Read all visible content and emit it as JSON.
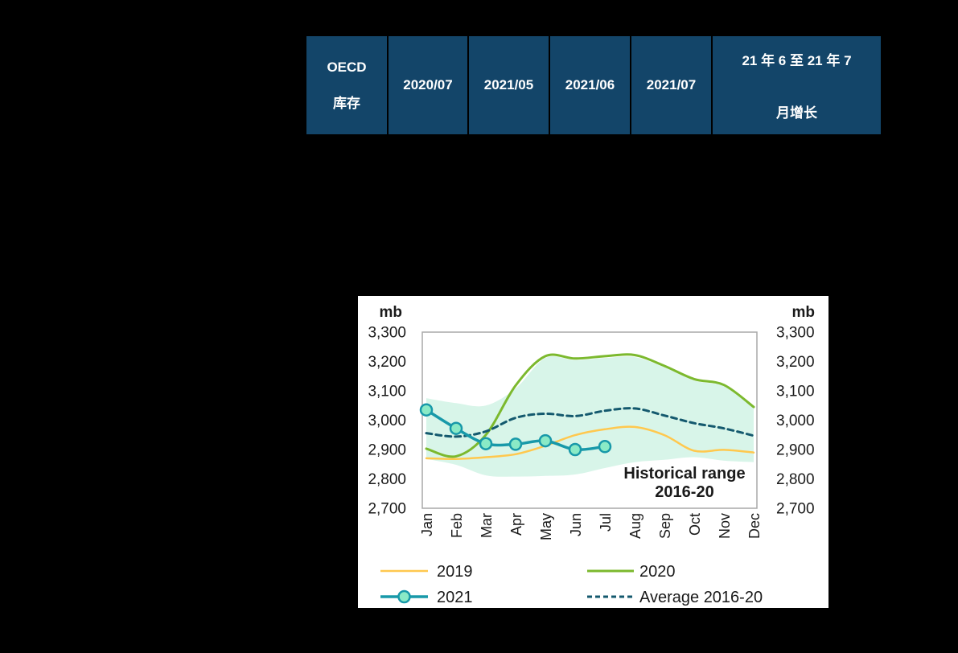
{
  "table": {
    "header_bg": "#134569",
    "header_text_color": "#FFFFFF",
    "columns": [
      {
        "lines": [
          "OECD",
          "库存"
        ]
      },
      {
        "lines": [
          "2020/07"
        ]
      },
      {
        "lines": [
          "2021/05"
        ]
      },
      {
        "lines": [
          "2021/06"
        ]
      },
      {
        "lines": [
          "2021/07"
        ]
      },
      {
        "lines": [
          "21 年 6 至 21 年 7",
          "月增长"
        ]
      }
    ]
  },
  "chart_data": {
    "type": "line",
    "title": "",
    "unit_label_left": "mb",
    "unit_label_right": "mb",
    "categories": [
      "Jan",
      "Feb",
      "Mar",
      "Apr",
      "May",
      "Jun",
      "Jul",
      "Aug",
      "Sep",
      "Oct",
      "Nov",
      "Dec"
    ],
    "ylim": [
      2700,
      3300
    ],
    "yticks": [
      2700,
      2800,
      2900,
      3000,
      3100,
      3200,
      3300
    ],
    "ytick_labels": [
      "2,700",
      "2,800",
      "2,900",
      "3,000",
      "3,100",
      "3,200",
      "3,300"
    ],
    "grid": false,
    "plot_border_color": "#A9A9A9",
    "text_color": "#1a1a1a",
    "annotation": {
      "lines": [
        "Historical range",
        "2016-20"
      ]
    },
    "band": {
      "name": "Historical range 2016-20",
      "fill": "#D8F5E9",
      "top": [
        3075,
        3058,
        3050,
        3108,
        3212,
        3205,
        3212,
        3215,
        3180,
        3135,
        3115,
        3040
      ],
      "bottom": [
        2868,
        2848,
        2812,
        2808,
        2810,
        2815,
        2837,
        2857,
        2865,
        2874,
        2862,
        2857
      ]
    },
    "series": [
      {
        "name": "2019",
        "color": "#FFC84E",
        "dashed": false,
        "markers": false,
        "width": 2.5,
        "values": [
          2870,
          2868,
          2874,
          2884,
          2913,
          2949,
          2969,
          2977,
          2949,
          2896,
          2899,
          2890
        ]
      },
      {
        "name": "2020",
        "color": "#7CB92E",
        "dashed": false,
        "markers": false,
        "width": 3,
        "values": [
          2903,
          2877,
          2950,
          3118,
          3218,
          3210,
          3218,
          3222,
          3185,
          3140,
          3120,
          3045
        ]
      },
      {
        "name": "Average 2016-20",
        "color": "#14596E",
        "dashed": true,
        "markers": false,
        "width": 3,
        "values": [
          2956,
          2944,
          2962,
          3008,
          3022,
          3014,
          3032,
          3040,
          3016,
          2990,
          2972,
          2947
        ]
      },
      {
        "name": "2021",
        "color": "#1899A9",
        "dashed": false,
        "markers": true,
        "marker_fill": "#8AEAC6",
        "width": 3.5,
        "values": [
          3035,
          2972,
          2920,
          2918,
          2930,
          2900,
          2910
        ]
      }
    ],
    "legend_rows": [
      [
        "2019",
        "2020"
      ],
      [
        "2021",
        "Average 2016-20"
      ]
    ],
    "legend_position": "bottom"
  }
}
